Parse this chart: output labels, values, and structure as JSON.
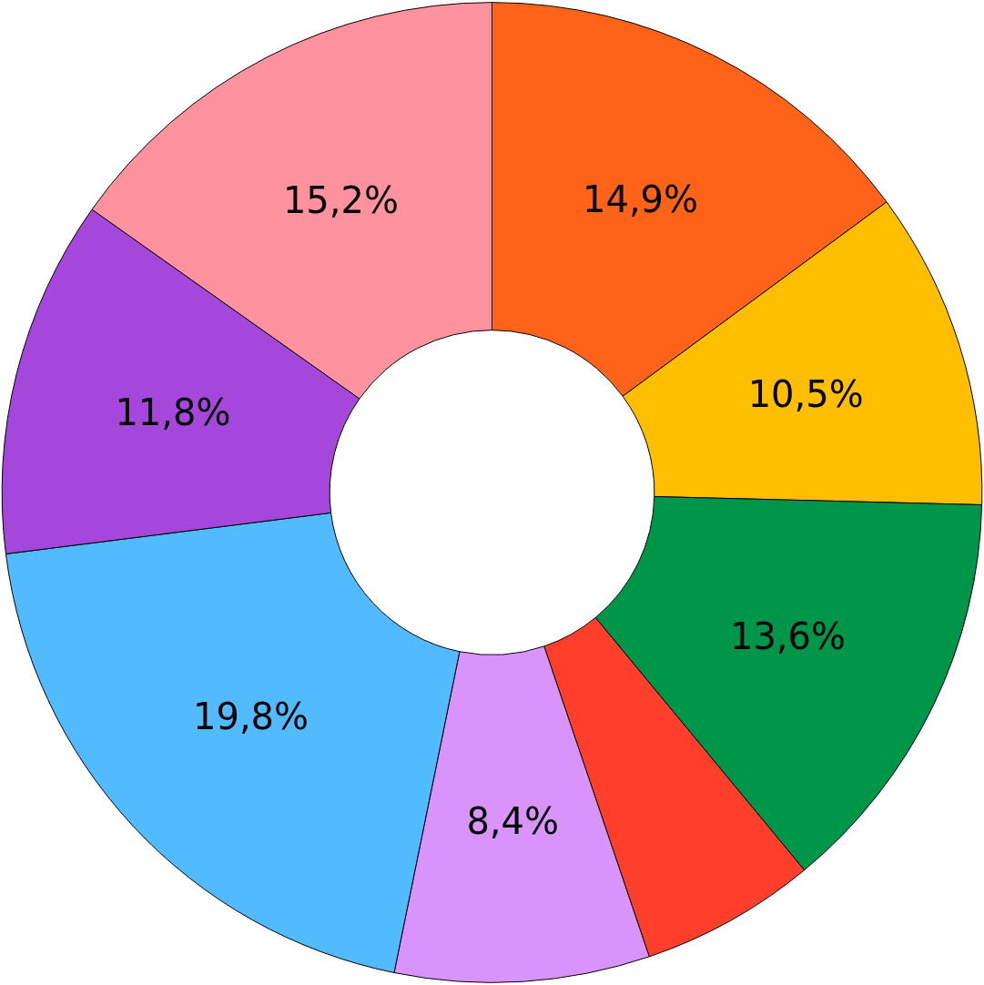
{
  "chart_data": {
    "type": "donut",
    "categories": [
      null,
      null,
      null,
      null,
      null,
      null,
      null,
      null
    ],
    "values": [
      14.9,
      10.5,
      13.6,
      5.8,
      8.4,
      19.8,
      11.8,
      15.2
    ],
    "colors": [
      "#ff6319",
      "#ffbe00",
      "#00964a",
      "#ff3e2b",
      "#d894fa",
      "#52bbff",
      "#a647dc",
      "#ff929f"
    ],
    "value_labels": [
      "14,9%",
      "10,5%",
      "13,6%",
      null,
      "8,4%",
      "19,8%",
      "11,8%",
      "15,2%"
    ]
  }
}
